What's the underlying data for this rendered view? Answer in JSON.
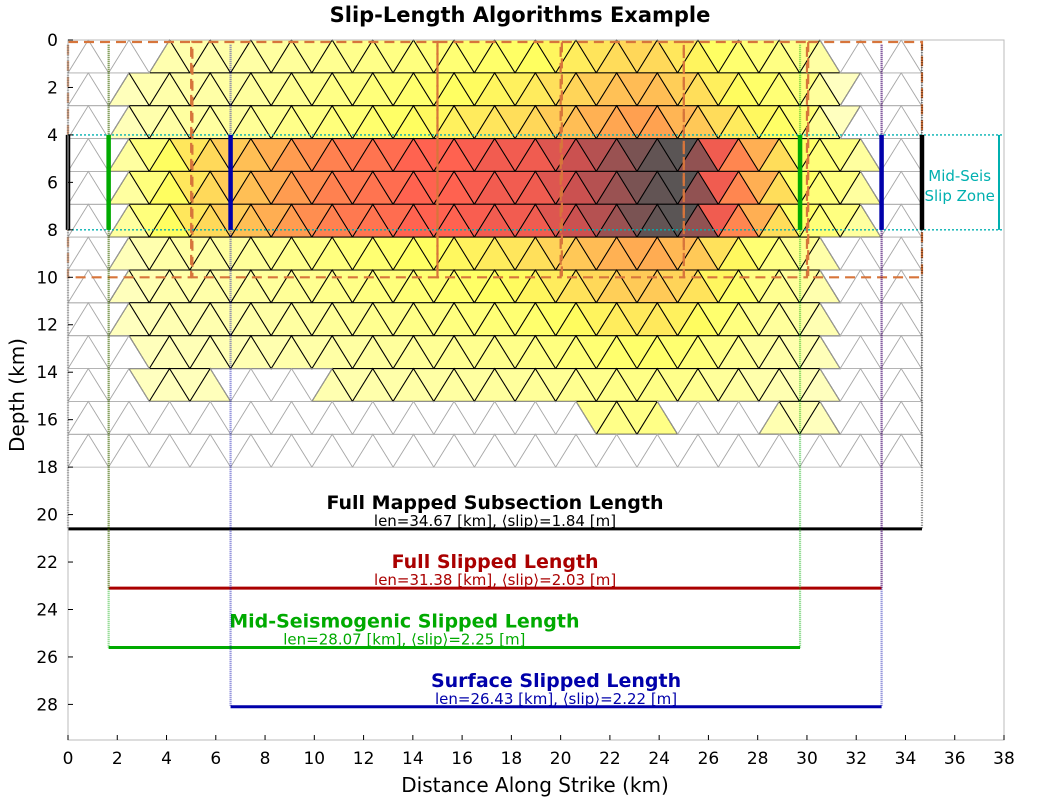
{
  "chart_data": {
    "type": "line",
    "title": "Slip-Length Algorithms Example",
    "xlabel": "Distance Along Strike (km)",
    "ylabel": "Depth (km)",
    "xlim": [
      0,
      38
    ],
    "ylim": [
      29.5,
      0
    ],
    "y_inverted": true,
    "grid": false,
    "xticks": [
      0,
      2,
      4,
      6,
      8,
      10,
      12,
      14,
      16,
      18,
      20,
      22,
      24,
      26,
      28,
      30,
      32,
      34,
      36,
      38
    ],
    "yticks": [
      0,
      2,
      4,
      6,
      8,
      10,
      12,
      14,
      16,
      18,
      20,
      22,
      24,
      26,
      28
    ],
    "mesh": {
      "x_range": [
        0,
        34.67
      ],
      "depth_range": [
        0,
        18
      ],
      "triangle_width_km": 1.65,
      "row_height_km": 1.385,
      "line_color": "#aaaaaa"
    },
    "slip_colormap": [
      "#ffffc8",
      "#ffff60",
      "#ffa050",
      "#ff6050",
      "#c85050",
      "#555555"
    ],
    "slip_field": {
      "mid_band_slip": [
        0.0,
        0.0,
        0.5,
        0.9,
        1.1,
        1.3,
        1.6,
        1.9,
        2.0,
        2.2,
        2.2,
        2.4,
        2.4,
        2.9,
        3.2,
        3.6,
        3.7,
        2.0,
        1.2,
        0.6,
        0.5,
        0.0,
        0.0
      ],
      "shallow_slip": [
        0.0,
        0.0,
        0.2,
        0.3,
        0.3,
        0.4,
        0.5,
        0.6,
        0.7,
        0.8,
        0.9,
        1.0,
        1.1,
        1.3,
        1.5,
        1.6,
        1.3,
        1.0,
        0.8,
        0.6,
        0.0,
        0.0,
        0.0
      ],
      "deep_slip": [
        0.0,
        0.0,
        0.2,
        0.3,
        0.3,
        0.4,
        0.5,
        0.6,
        0.7,
        0.8,
        0.9,
        1.0,
        1.1,
        1.3,
        1.5,
        1.6,
        1.4,
        1.0,
        0.6,
        0.4,
        0.0,
        0.0,
        0.0
      ],
      "bottom_depth_profile": [
        18,
        18,
        15.3,
        15.3,
        14.4,
        14.4,
        14.4,
        14.8,
        15.3,
        15.3,
        15.0,
        14.8,
        14.8,
        15.6,
        16.2,
        16.0,
        15.8,
        15.4,
        16.0,
        16.8,
        18,
        18,
        18
      ],
      "top_depth_profile": [
        1.5,
        1.5,
        1.3,
        0.0,
        0.0,
        0.0,
        0.0,
        0.0,
        0.0,
        0.0,
        0.0,
        0.0,
        0.0,
        0.0,
        0.0,
        0.0,
        0.0,
        0.0,
        0.0,
        0.0,
        0.0,
        0.8,
        1.5
      ]
    },
    "subsection_boxes": {
      "x_edges": [
        0,
        5,
        15,
        20,
        25,
        30,
        34.67
      ],
      "top": 0,
      "bottom": 10,
      "color": "#d7753b"
    },
    "mid_seis_zone": {
      "label_lines": [
        "Mid-Seis",
        "Slip Zone"
      ],
      "top": 4,
      "bottom": 8,
      "x_end": 38,
      "color": "#00b0b0"
    },
    "series": [
      {
        "name": "Full Mapped Subsection Length",
        "annotation": "len=34.67 [km], ⟨slip⟩=1.84 [m]",
        "x": [
          0,
          34.67
        ],
        "depth": 20.6,
        "marker_top": 4,
        "marker_bottom": 8,
        "color": "#000000"
      },
      {
        "name": "Full Slipped Length",
        "annotation": "len=31.38 [km], ⟨slip⟩=2.03 [m]",
        "x": [
          1.65,
          33.03
        ],
        "depth": 23.1,
        "marker_top": null,
        "marker_bottom": null,
        "color": "#aa0000"
      },
      {
        "name": "Mid-Seismogenic Slipped Length",
        "annotation": "len=28.07 [km], ⟨slip⟩=2.25 [m]",
        "x": [
          1.65,
          29.72
        ],
        "depth": 25.6,
        "marker_top": 4,
        "marker_bottom": 8,
        "color": "#00aa00"
      },
      {
        "name": "Surface Slipped Length",
        "annotation": "len=26.43 [km], ⟨slip⟩=2.22 [m]",
        "x": [
          6.6,
          33.03
        ],
        "depth": 28.1,
        "marker_top": 4,
        "marker_bottom": 8,
        "color": "#0000aa"
      }
    ]
  }
}
